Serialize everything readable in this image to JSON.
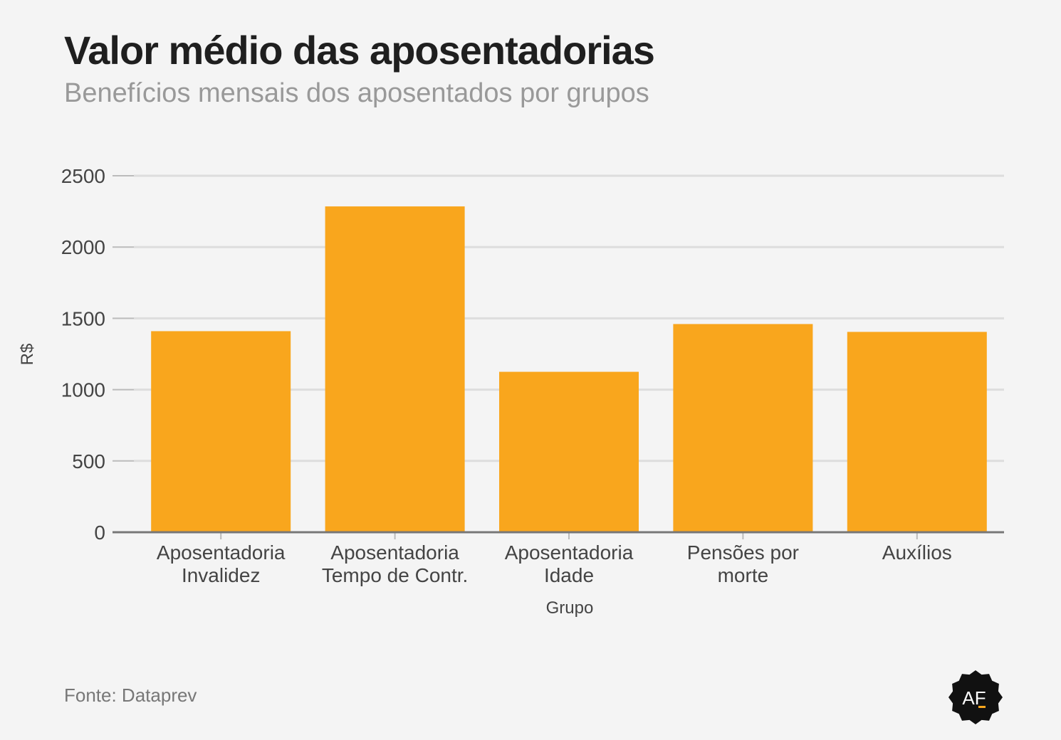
{
  "header": {
    "title": "Valor médio das aposentadorias",
    "subtitle": "Benefícios mensais dos aposentados por grupos"
  },
  "footer": {
    "source": "Fonte: Dataprev",
    "logo_text": "AF"
  },
  "colors": {
    "bar": "#f9a61d",
    "grid": "#dddddd",
    "axis": "#777777",
    "tick_text": "#444444",
    "background": "#f4f4f4",
    "logo": "#111111"
  },
  "chart_data": {
    "type": "bar",
    "categories": [
      [
        "Aposentadoria",
        "Invalidez"
      ],
      [
        "Aposentadoria",
        "Tempo de Contr."
      ],
      [
        "Aposentadoria",
        "Idade"
      ],
      [
        "Pensões por",
        "morte"
      ],
      [
        "Auxílios"
      ]
    ],
    "values": [
      1410,
      2285,
      1125,
      1460,
      1405
    ],
    "xlabel": "Grupo",
    "ylabel": "R$",
    "ylim": [
      0,
      2500
    ],
    "yticks": [
      0,
      500,
      1000,
      1500,
      2000,
      2500
    ],
    "grid": true,
    "legend": "none"
  }
}
